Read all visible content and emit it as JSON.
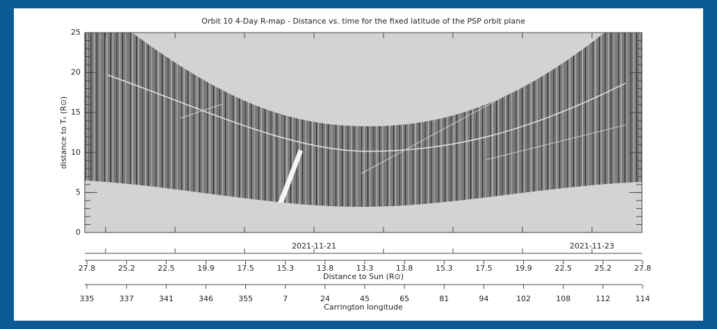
{
  "chart_data": {
    "type": "rmap",
    "title": "Orbit 10 4-Day R-map - Distance vs. time for the fixed latitude of the PSP orbit plane",
    "y_label": "distance to Tₛ (R⊙)",
    "ylim": [
      0,
      25
    ],
    "yticks": [
      0,
      5,
      10,
      15,
      20,
      25
    ],
    "date_labels": [
      "2021-11-21",
      "2021-11-23"
    ],
    "distance_label": "Distance to Sun (R⊙)",
    "distance_ticks": [
      "27.8",
      "25.2",
      "22.5",
      "19.9",
      "17.5",
      "15.3",
      "13.8",
      "13.3",
      "13.8",
      "15.3",
      "17.5",
      "19.9",
      "22.5",
      "25.2",
      "27.8"
    ],
    "carrington_label": "Carrington longitude",
    "carrington_ticks": [
      "335",
      "337",
      "341",
      "346",
      "355",
      "7",
      "24",
      "45",
      "65",
      "81",
      "94",
      "102",
      "108",
      "112",
      "114"
    ]
  }
}
